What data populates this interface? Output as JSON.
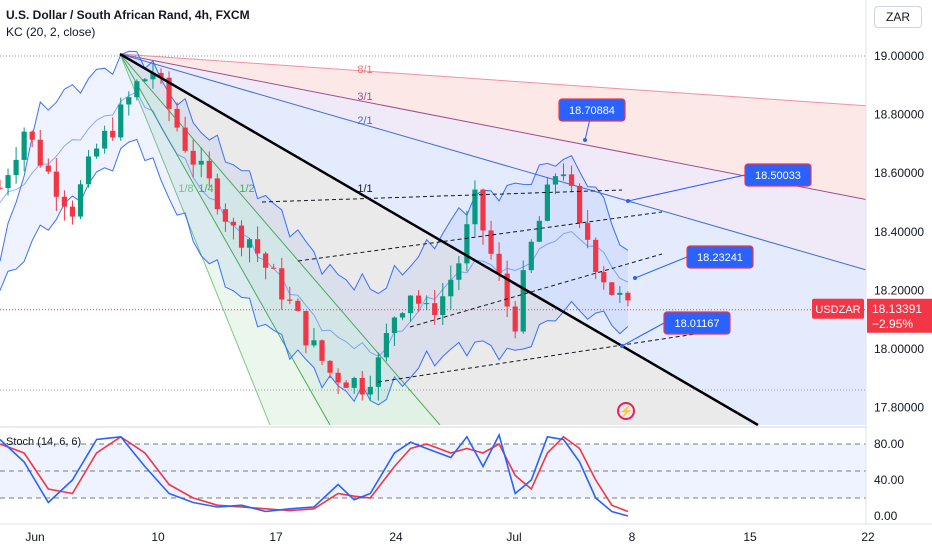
{
  "header": {
    "symbol_line": "U.S. Dollar / South African Rand, 4h, FXCM",
    "indicator_line": "KC (20, 2, close)",
    "currency": "ZAR"
  },
  "colors": {
    "up": "#089981",
    "down": "#f23645",
    "kc": "#2962ff",
    "stoch_k": "#2962ff",
    "stoch_d": "#f23645",
    "trend": "#000000",
    "label_blue": "#2962ff"
  },
  "chart_data": {
    "type": "candlestick",
    "timeframe": "4h",
    "symbol": "USDZAR",
    "ylim": [
      17.72,
      19.08
    ],
    "y_ticks": [
      "19.00000",
      "18.80000",
      "18.60000",
      "18.40000",
      "18.20000",
      "18.00000",
      "17.80000"
    ],
    "x_ticks": [
      "Jun",
      "10",
      "17",
      "24",
      "Jul",
      "8",
      "15",
      "22"
    ],
    "last_price": {
      "label": "USDZAR",
      "value": "18.13391",
      "change": "−2.95%"
    },
    "horizontal_levels": [
      19.0,
      17.86
    ],
    "callouts": [
      "18.70884",
      "18.50033",
      "18.23241",
      "18.01167"
    ],
    "fan_labels": [
      "8/1",
      "3/1",
      "2/1",
      "1/1",
      "1/2",
      "1/4",
      "1/8"
    ],
    "close_path": [
      [
        0,
        18.55
      ],
      [
        3,
        18.75
      ],
      [
        6,
        18.6
      ],
      [
        9,
        18.48
      ],
      [
        12,
        18.68
      ],
      [
        15,
        18.8
      ],
      [
        17,
        18.9
      ],
      [
        19,
        18.95
      ],
      [
        21,
        18.82
      ],
      [
        23,
        18.7
      ],
      [
        25,
        18.6
      ],
      [
        27,
        18.52
      ],
      [
        29,
        18.4
      ],
      [
        31,
        18.38
      ],
      [
        33,
        18.28
      ],
      [
        35,
        18.2
      ],
      [
        37,
        18.1
      ],
      [
        39,
        18.0
      ],
      [
        41,
        17.92
      ],
      [
        43,
        17.9
      ],
      [
        45,
        17.88
      ],
      [
        47,
        17.95
      ],
      [
        49,
        18.12
      ],
      [
        51,
        18.2
      ],
      [
        53,
        18.12
      ],
      [
        55,
        18.18
      ],
      [
        57,
        18.3
      ],
      [
        59,
        18.5
      ],
      [
        61,
        18.32
      ],
      [
        63,
        18.15
      ],
      [
        64,
        18.1
      ],
      [
        66,
        18.35
      ],
      [
        68,
        18.52
      ],
      [
        69,
        18.6
      ],
      [
        70,
        18.62
      ],
      [
        71,
        18.52
      ],
      [
        72,
        18.4
      ],
      [
        73,
        18.38
      ],
      [
        74,
        18.3
      ],
      [
        75,
        18.25
      ],
      [
        76,
        18.2
      ],
      [
        77,
        18.17
      ],
      [
        78,
        18.13
      ]
    ],
    "keltner": {
      "period": 20,
      "mult": 2,
      "upper": [
        [
          0,
          18.3
        ],
        [
          5,
          18.82
        ],
        [
          17,
          19.02
        ],
        [
          25,
          18.75
        ],
        [
          33,
          18.52
        ],
        [
          41,
          18.26
        ],
        [
          47,
          18.2
        ],
        [
          53,
          18.34
        ],
        [
          59,
          18.52
        ],
        [
          64,
          18.55
        ],
        [
          70,
          18.66
        ],
        [
          74,
          18.55
        ],
        [
          78,
          18.32
        ]
      ],
      "mid": [
        [
          0,
          18.5
        ],
        [
          5,
          18.62
        ],
        [
          17,
          18.88
        ],
        [
          25,
          18.55
        ],
        [
          33,
          18.3
        ],
        [
          41,
          18.05
        ],
        [
          47,
          17.98
        ],
        [
          53,
          18.16
        ],
        [
          59,
          18.3
        ],
        [
          64,
          18.26
        ],
        [
          70,
          18.4
        ],
        [
          74,
          18.35
        ],
        [
          78,
          18.22
        ]
      ],
      "lower": [
        [
          0,
          18.2
        ],
        [
          5,
          18.4
        ],
        [
          17,
          18.72
        ],
        [
          25,
          18.33
        ],
        [
          33,
          18.08
        ],
        [
          41,
          17.88
        ],
        [
          47,
          17.82
        ],
        [
          53,
          17.96
        ],
        [
          59,
          18.02
        ],
        [
          64,
          17.98
        ],
        [
          70,
          18.14
        ],
        [
          74,
          18.12
        ],
        [
          78,
          18.06
        ]
      ]
    },
    "stochastic": {
      "label": "Stoch (14, 6, 6)",
      "ylim": [
        -6,
        96
      ],
      "y_ticks": [
        "80.00",
        "40.00",
        "0.00"
      ],
      "levels": [
        80,
        50,
        20
      ],
      "k": [
        [
          0,
          85
        ],
        [
          3,
          60
        ],
        [
          6,
          15
        ],
        [
          9,
          40
        ],
        [
          12,
          85
        ],
        [
          15,
          88
        ],
        [
          18,
          55
        ],
        [
          21,
          25
        ],
        [
          24,
          15
        ],
        [
          27,
          10
        ],
        [
          30,
          12
        ],
        [
          33,
          5
        ],
        [
          36,
          8
        ],
        [
          39,
          10
        ],
        [
          42,
          35
        ],
        [
          44,
          18
        ],
        [
          46,
          25
        ],
        [
          49,
          70
        ],
        [
          51,
          82
        ],
        [
          53,
          75
        ],
        [
          56,
          65
        ],
        [
          58,
          88
        ],
        [
          60,
          55
        ],
        [
          62,
          90
        ],
        [
          64,
          25
        ],
        [
          66,
          40
        ],
        [
          68,
          88
        ],
        [
          70,
          85
        ],
        [
          72,
          60
        ],
        [
          74,
          20
        ],
        [
          76,
          5
        ],
        [
          78,
          0
        ]
      ],
      "d": [
        [
          0,
          80
        ],
        [
          3,
          70
        ],
        [
          6,
          30
        ],
        [
          9,
          25
        ],
        [
          12,
          70
        ],
        [
          15,
          88
        ],
        [
          18,
          70
        ],
        [
          21,
          35
        ],
        [
          24,
          20
        ],
        [
          27,
          12
        ],
        [
          30,
          10
        ],
        [
          33,
          8
        ],
        [
          36,
          6
        ],
        [
          39,
          8
        ],
        [
          42,
          25
        ],
        [
          44,
          22
        ],
        [
          46,
          20
        ],
        [
          49,
          55
        ],
        [
          51,
          75
        ],
        [
          53,
          80
        ],
        [
          56,
          70
        ],
        [
          58,
          75
        ],
        [
          60,
          70
        ],
        [
          62,
          80
        ],
        [
          64,
          45
        ],
        [
          66,
          30
        ],
        [
          68,
          70
        ],
        [
          70,
          88
        ],
        [
          72,
          75
        ],
        [
          74,
          40
        ],
        [
          76,
          12
        ],
        [
          78,
          5
        ]
      ]
    }
  }
}
